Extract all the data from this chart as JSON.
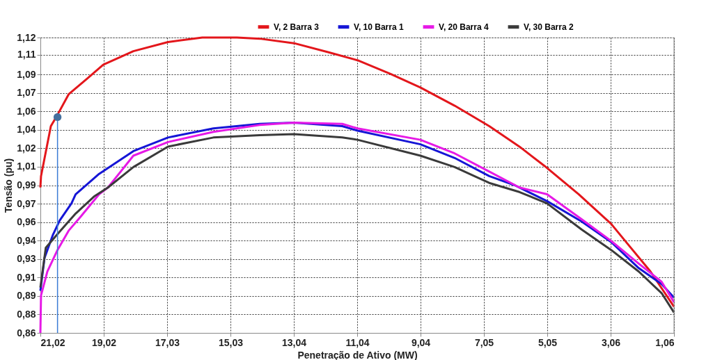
{
  "chart_data": {
    "type": "line",
    "xlabel": "Penetração de Ativo (MW)",
    "ylabel": "Tensão (pu)",
    "xlim": [
      21.02,
      1.06
    ],
    "ylim": [
      0.86,
      1.12
    ],
    "xticks": [
      {
        "value": 21.02,
        "label": "21,02"
      },
      {
        "value": 19.024,
        "label": "19,02"
      },
      {
        "value": 17.028,
        "label": "17,03"
      },
      {
        "value": 15.032,
        "label": "15,03"
      },
      {
        "value": 13.036,
        "label": "13,04"
      },
      {
        "value": 11.04,
        "label": "11,04"
      },
      {
        "value": 9.044,
        "label": "9,04"
      },
      {
        "value": 7.048,
        "label": "7,05"
      },
      {
        "value": 5.052,
        "label": "5,05"
      },
      {
        "value": 3.056,
        "label": "3,06"
      },
      {
        "value": 1.06,
        "label": "1,06"
      }
    ],
    "yticks": [
      {
        "value": 0.86,
        "label": "0,86"
      },
      {
        "value": 0.87625,
        "label": "0,88"
      },
      {
        "value": 0.8925,
        "label": "0,89"
      },
      {
        "value": 0.90875,
        "label": "0,91"
      },
      {
        "value": 0.925,
        "label": "0,93"
      },
      {
        "value": 0.94125,
        "label": "0,94"
      },
      {
        "value": 0.9575,
        "label": "0,96"
      },
      {
        "value": 0.97375,
        "label": "0,97"
      },
      {
        "value": 0.99,
        "label": "0,99"
      },
      {
        "value": 1.00625,
        "label": "1,01"
      },
      {
        "value": 1.0225,
        "label": "1,02"
      },
      {
        "value": 1.03875,
        "label": "1,04"
      },
      {
        "value": 1.055,
        "label": "1,06"
      },
      {
        "value": 1.07125,
        "label": "1,07"
      },
      {
        "value": 1.0875,
        "label": "1,09"
      },
      {
        "value": 1.105,
        "label": "1,11"
      },
      {
        "value": 1.12,
        "label": "1,12"
      }
    ],
    "grid": true,
    "legend": "top right",
    "marker": "none",
    "line_style": "solid",
    "series": [
      {
        "name": "V,   2 Barra 3",
        "color": "#e3161b",
        "x": [
          21.02,
          21.0,
          20.69,
          20.48,
          20.13,
          19.54,
          19.04,
          18.09,
          17.0,
          15.92,
          14.83,
          14.11,
          13.03,
          11.94,
          11.03,
          9.99,
          9.05,
          7.97,
          6.88,
          5.93,
          5.14,
          4.06,
          3.04,
          2.54,
          1.8,
          1.06
        ],
        "values": [
          0.988,
          0.998,
          1.042,
          1.052,
          1.07,
          1.084,
          1.096,
          1.108,
          1.116,
          1.12,
          1.12,
          1.119,
          1.115,
          1.107,
          1.1,
          1.088,
          1.076,
          1.06,
          1.042,
          1.024,
          1.007,
          0.982,
          0.956,
          0.939,
          0.914,
          0.883
        ]
      },
      {
        "name": "V,   10 Barra 1",
        "color": "#1515d6",
        "x": [
          21.02,
          20.89,
          20.63,
          20.41,
          20.04,
          19.91,
          19.17,
          18.09,
          17.0,
          15.57,
          14.11,
          13.03,
          11.51,
          11.03,
          9.05,
          7.97,
          6.88,
          6.08,
          5.06,
          3.97,
          3.04,
          2.17,
          1.45,
          1.06
        ],
        "values": [
          0.897,
          0.926,
          0.946,
          0.959,
          0.974,
          0.982,
          1.0,
          1.02,
          1.032,
          1.04,
          1.044,
          1.045,
          1.042,
          1.038,
          1.026,
          1.014,
          0.998,
          0.99,
          0.976,
          0.958,
          0.94,
          0.917,
          0.903,
          0.891
        ]
      },
      {
        "name": "V,   20 Barra 4",
        "color": "#e619e6",
        "x": [
          21.02,
          21.0,
          20.8,
          20.48,
          20.13,
          19.76,
          19.17,
          18.89,
          18.09,
          17.0,
          15.57,
          14.11,
          13.03,
          11.51,
          11.03,
          9.05,
          7.97,
          6.88,
          5.93,
          5.06,
          3.97,
          3.04,
          2.17,
          1.45,
          1.06
        ],
        "values": [
          0.86,
          0.893,
          0.914,
          0.933,
          0.95,
          0.962,
          0.982,
          0.988,
          1.016,
          1.028,
          1.037,
          1.043,
          1.045,
          1.044,
          1.04,
          1.03,
          1.018,
          1.002,
          0.988,
          0.982,
          0.96,
          0.941,
          0.921,
          0.905,
          0.887
        ]
      },
      {
        "name": "V,   30 Barra 2",
        "color": "#3a3a3a",
        "x": [
          21.02,
          20.85,
          20.48,
          19.91,
          19.33,
          18.89,
          18.09,
          17.0,
          15.57,
          14.11,
          13.03,
          11.51,
          11.03,
          9.05,
          7.97,
          6.88,
          5.93,
          5.06,
          3.97,
          3.04,
          2.17,
          1.45,
          1.06
        ],
        "values": [
          0.9,
          0.935,
          0.947,
          0.965,
          0.98,
          0.988,
          1.006,
          1.024,
          1.032,
          1.034,
          1.035,
          1.032,
          1.03,
          1.016,
          1.006,
          0.992,
          0.984,
          0.974,
          0.951,
          0.933,
          0.914,
          0.895,
          0.878
        ]
      },
      {
        "color": "#3a7bd5",
        "type": "line",
        "x": [
          20.48,
          20.48
        ],
        "values": [
          0.86,
          1.05
        ]
      },
      {
        "color": "#44709e",
        "type": "scatter",
        "marker": "circle",
        "x": [
          20.48
        ],
        "values": [
          1.05
        ]
      }
    ]
  }
}
